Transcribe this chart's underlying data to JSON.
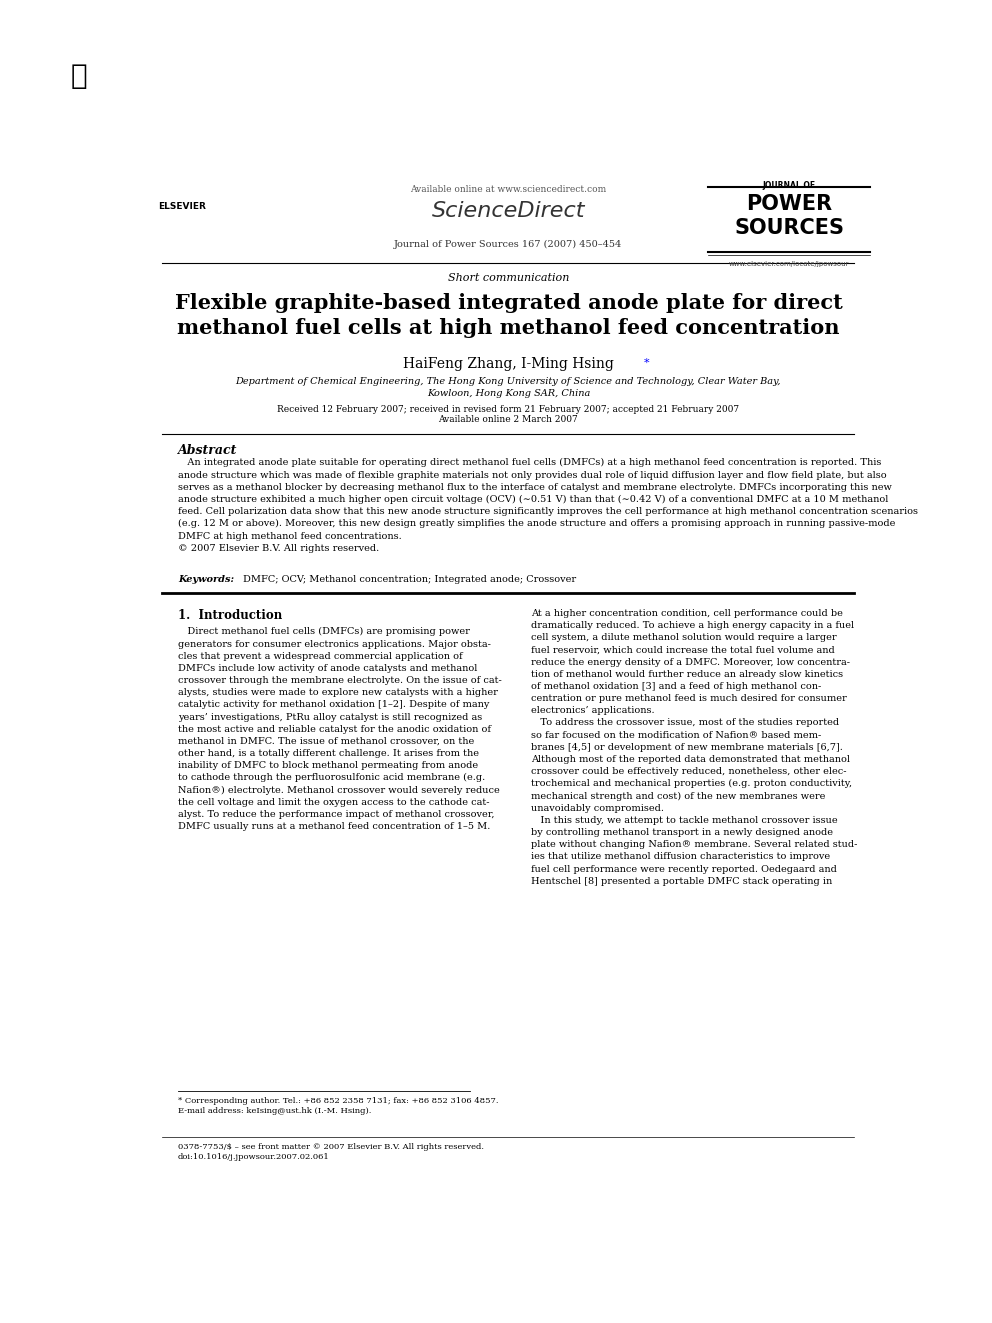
{
  "bg_color": "#ffffff",
  "page_width": 9.92,
  "page_height": 13.23,
  "header": {
    "available_online": "Available online at www.sciencedirect.com",
    "sciencedirect": "ScienceDirect",
    "journal_line": "Journal of Power Sources 167 (2007) 450–454",
    "journal_name_line1": "JOURNAL OF",
    "journal_name_line2": "POWER",
    "journal_name_line3": "SOURCES",
    "journal_url": "www.elsevier.com/locate/jpowsour"
  },
  "article_type": "Short communication",
  "title": "Flexible graphite-based integrated anode plate for direct\nmethanol fuel cells at high methanol feed concentration",
  "authors": "HaiFeng Zhang, I-Ming Hsing",
  "affiliation_line1": "Department of Chemical Engineering, The Hong Kong University of Science and Technology, Clear Water Bay,",
  "affiliation_line2": "Kowloon, Hong Kong SAR, China",
  "received_line1": "Received 12 February 2007; received in revised form 21 February 2007; accepted 21 February 2007",
  "received_line2": "Available online 2 March 2007",
  "abstract_title": "Abstract",
  "keywords_label": "Keywords:",
  "keywords_text": "DMFC; OCV; Methanol concentration; Integrated anode; Crossover",
  "section1_title": "1.  Introduction",
  "footnote_line1": "* Corresponding author. Tel.: +86 852 2358 7131; fax: +86 852 3106 4857.",
  "footnote_line2": "E-mail address: keIsing@ust.hk (I.-M. Hsing).",
  "footer_line1": "0378-7753/$ – see front matter © 2007 Elsevier B.V. All rights reserved.",
  "footer_line2": "doi:10.1016/j.jpowsour.2007.02.061"
}
